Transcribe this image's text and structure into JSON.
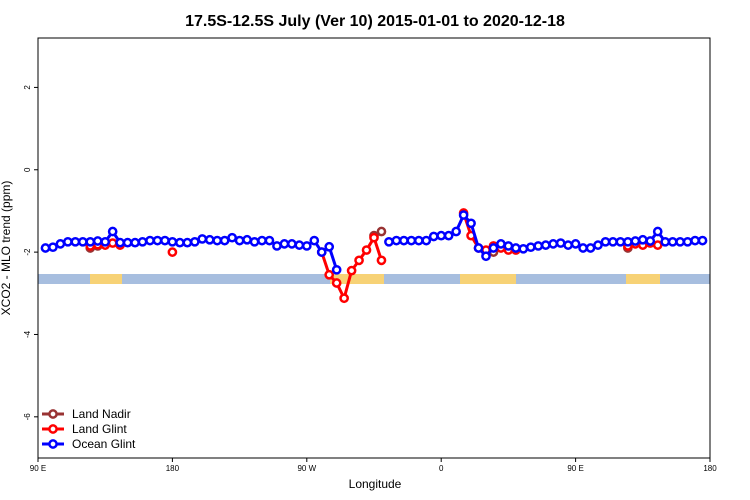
{
  "chart_data": {
    "type": "line",
    "title": "17.5S-12.5S July (Ver 10)   2015-01-01 to 2020-12-18",
    "x_label": "Longitude",
    "y_label": "XCO2 - MLO trend (ppm)",
    "xlim": [
      90,
      540
    ],
    "ylim": [
      -7,
      3.2
    ],
    "xticks": [
      {
        "value": 90,
        "label": "90 E"
      },
      180,
      {
        "value": 270,
        "label": "90 W"
      },
      {
        "value": 360,
        "label": "0"
      },
      {
        "value": 450,
        "label": "90 E"
      },
      {
        "value": 540,
        "label": "180"
      }
    ],
    "yticks": [
      -6,
      -4,
      -2,
      0,
      2
    ],
    "grid": false,
    "legend": "bottomleft",
    "x": [
      95,
      100,
      105,
      110,
      115,
      120,
      125,
      130,
      135,
      140,
      145,
      150,
      155,
      160,
      165,
      170,
      175,
      180,
      185,
      190,
      195,
      200,
      205,
      210,
      215,
      220,
      225,
      230,
      235,
      240,
      245,
      250,
      255,
      260,
      265,
      270,
      275,
      280,
      285,
      290,
      295,
      300,
      305,
      310,
      315,
      320,
      325,
      330,
      335,
      340,
      345,
      350,
      355,
      360,
      365,
      370,
      375,
      380,
      385,
      390,
      395,
      400,
      405,
      410,
      415,
      420,
      425,
      430,
      435,
      440,
      445,
      450,
      455,
      460,
      465,
      470,
      475,
      480,
      485,
      490,
      495,
      500,
      505,
      510,
      515,
      520,
      525,
      530,
      535
    ],
    "series": [
      {
        "name": "Land Nadir",
        "color": "#993333",
        "values": [
          null,
          null,
          null,
          null,
          null,
          null,
          -1.9,
          -1.85,
          null,
          null,
          null,
          null,
          null,
          null,
          null,
          null,
          null,
          null,
          null,
          null,
          null,
          null,
          null,
          null,
          null,
          null,
          null,
          null,
          null,
          null,
          null,
          null,
          null,
          null,
          null,
          null,
          null,
          null,
          null,
          null,
          null,
          null,
          null,
          null,
          -1.6,
          -1.5,
          null,
          null,
          null,
          null,
          null,
          null,
          null,
          null,
          null,
          null,
          null,
          null,
          null,
          null,
          -2.0,
          null,
          null,
          null,
          null,
          null,
          null,
          null,
          null,
          null,
          null,
          null,
          null,
          null,
          null,
          null,
          null,
          null,
          -1.9,
          null,
          null,
          null,
          null,
          null,
          null,
          null,
          null,
          null,
          null
        ]
      },
      {
        "name": "Land Glint",
        "color": "#ff0000",
        "values": [
          null,
          null,
          null,
          null,
          null,
          null,
          -1.85,
          -1.82,
          -1.83,
          -1.78,
          -1.83,
          null,
          null,
          null,
          null,
          null,
          null,
          -2.0,
          null,
          null,
          null,
          null,
          null,
          null,
          null,
          null,
          null,
          null,
          null,
          null,
          null,
          null,
          null,
          null,
          null,
          null,
          null,
          -2.0,
          -2.55,
          -2.75,
          -3.12,
          -2.45,
          -2.2,
          -1.95,
          -1.65,
          -2.2,
          null,
          null,
          null,
          null,
          null,
          null,
          null,
          null,
          null,
          null,
          -1.05,
          -1.6,
          -1.9,
          -1.95,
          -1.85,
          -1.9,
          -1.95,
          -1.95,
          null,
          null,
          null,
          null,
          null,
          null,
          null,
          null,
          null,
          null,
          null,
          null,
          null,
          null,
          -1.85,
          -1.8,
          -1.83,
          -1.78,
          -1.83,
          null,
          null,
          null,
          null,
          null,
          null
        ]
      },
      {
        "name": "Ocean Glint",
        "color": "#0000ff",
        "values": [
          -1.9,
          -1.88,
          -1.8,
          -1.75,
          -1.75,
          -1.75,
          -1.75,
          -1.73,
          -1.75,
          -1.5,
          -1.77,
          -1.77,
          -1.77,
          -1.75,
          -1.72,
          -1.72,
          -1.72,
          -1.75,
          -1.77,
          -1.77,
          -1.75,
          -1.68,
          -1.7,
          -1.72,
          -1.72,
          -1.65,
          -1.72,
          -1.7,
          -1.75,
          -1.72,
          -1.72,
          -1.85,
          -1.8,
          -1.8,
          -1.83,
          -1.85,
          -1.72,
          -2.0,
          -1.87,
          -2.43,
          null,
          null,
          null,
          null,
          null,
          null,
          -1.75,
          -1.72,
          -1.72,
          -1.72,
          -1.72,
          -1.72,
          -1.62,
          -1.6,
          -1.6,
          -1.5,
          -1.1,
          -1.3,
          -1.9,
          -2.1,
          -1.9,
          -1.8,
          -1.85,
          -1.9,
          -1.92,
          -1.88,
          -1.85,
          -1.83,
          -1.8,
          -1.78,
          -1.83,
          -1.8,
          -1.9,
          -1.9,
          -1.83,
          -1.75,
          -1.75,
          -1.75,
          -1.75,
          -1.73,
          -1.7,
          -1.73,
          -1.5,
          -1.75,
          -1.75,
          -1.75,
          -1.75,
          -1.72,
          -1.72
        ]
      }
    ]
  }
}
